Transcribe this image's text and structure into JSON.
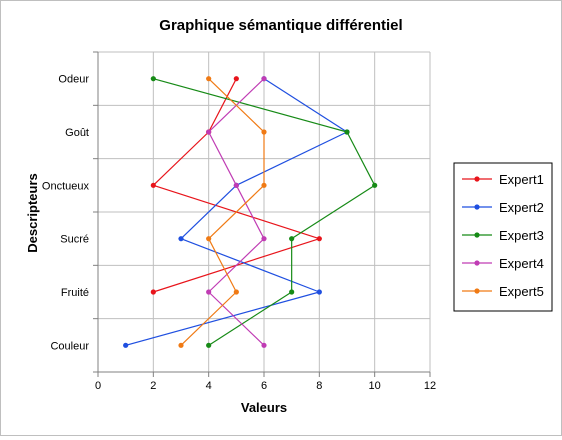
{
  "chart_data": {
    "type": "line",
    "title": "Graphique sémantique différentiel",
    "xlabel": "Valeurs",
    "ylabel": "Descripteurs",
    "xlim": [
      0,
      12
    ],
    "xticks": [
      "0",
      "2",
      "4",
      "6",
      "8",
      "10",
      "12"
    ],
    "categories": [
      "Odeur",
      "Goût",
      "Onctueux",
      "Sucré",
      "Fruité",
      "Couleur"
    ],
    "grid": true,
    "legend_position": "right",
    "series": [
      {
        "name": "Expert1",
        "color": "#e8141b",
        "values": [
          5,
          4,
          2,
          8,
          2,
          null
        ]
      },
      {
        "name": "Expert2",
        "color": "#1f4fe0",
        "values": [
          6,
          9,
          5,
          3,
          8,
          1
        ]
      },
      {
        "name": "Expert3",
        "color": "#168a16",
        "values": [
          2,
          9,
          10,
          7,
          7,
          4
        ]
      },
      {
        "name": "Expert4",
        "color": "#c03cb4",
        "values": [
          6,
          4,
          5,
          6,
          4,
          6
        ]
      },
      {
        "name": "Expert5",
        "color": "#f07a14",
        "values": [
          4,
          6,
          6,
          4,
          5,
          3
        ]
      }
    ]
  }
}
